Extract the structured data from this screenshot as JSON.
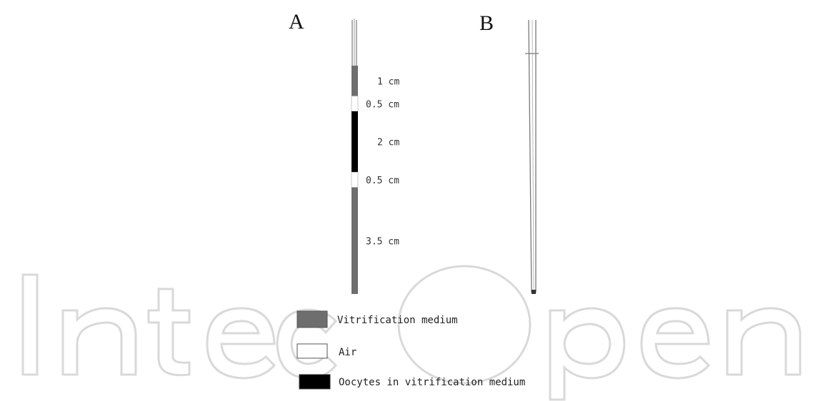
{
  "panels": {
    "a_label": "A",
    "b_label": "B"
  },
  "straw_a": {
    "segments": [
      {
        "length_cm": 1,
        "fill": "vitrification-medium",
        "label": "1 cm"
      },
      {
        "length_cm": 0.5,
        "fill": "air",
        "label": "0.5 cm"
      },
      {
        "length_cm": 2,
        "fill": "oocytes-in-medium",
        "label": "2 cm"
      },
      {
        "length_cm": 0.5,
        "fill": "air",
        "label": "0.5 cm"
      },
      {
        "length_cm": 3.5,
        "fill": "vitrification-medium",
        "label": "3.5 cm"
      }
    ]
  },
  "legend": {
    "items": [
      {
        "key": "vitrification-medium",
        "label": "Vitrification medium"
      },
      {
        "key": "air",
        "label": "Air"
      },
      {
        "key": "oocytes-in-medium",
        "label": "Oocytes in vitrification medium"
      }
    ]
  },
  "colors": {
    "vitrification-medium": "#6e6e6e",
    "air": "#ffffff",
    "oocytes-in-medium": "#000000",
    "outline": "#555555",
    "watermark": "#d9d9d9"
  },
  "watermark_text": "IntechOpen"
}
